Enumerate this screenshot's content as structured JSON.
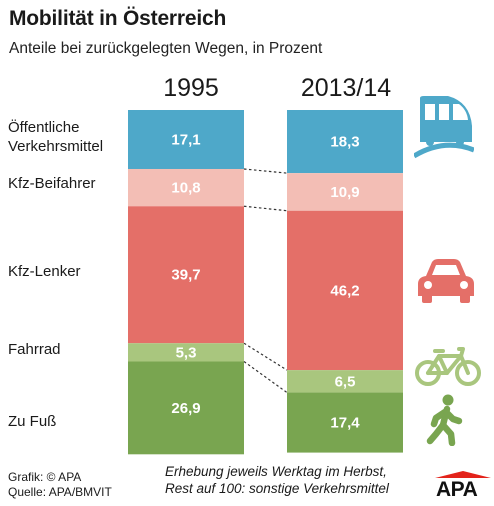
{
  "header": {
    "title": "Mobilität in Österreich",
    "subtitle": "Anteile bei zurückgelegten Wegen, in Prozent"
  },
  "rows": [
    {
      "label": "Öffentliche\nVerkehrsmittel",
      "color": "#4ea8c9",
      "icon": "train-icon"
    },
    {
      "label": "Kfz-Beifahrer",
      "color": "#f3beb5",
      "icon": ""
    },
    {
      "label": "Kfz-Lenker",
      "color": "#e46f68",
      "icon": "car-icon"
    },
    {
      "label": "Fahrrad",
      "color": "#a9c67e",
      "icon": "bicycle-icon"
    },
    {
      "label": "Zu Fuß",
      "color": "#79a550",
      "icon": "pedestrian-icon"
    }
  ],
  "chart_data": {
    "type": "bar",
    "stacked": true,
    "categories": [
      "1995",
      "2013/14"
    ],
    "series": [
      {
        "name": "Öffentliche Verkehrsmittel",
        "values": [
          17.1,
          18.3
        ],
        "labels": [
          "17,1",
          "18,3"
        ]
      },
      {
        "name": "Kfz-Beifahrer",
        "values": [
          10.8,
          10.9
        ],
        "labels": [
          "10,8",
          "10,9"
        ]
      },
      {
        "name": "Kfz-Lenker",
        "values": [
          39.7,
          46.2
        ],
        "labels": [
          "39,7",
          "46,2"
        ]
      },
      {
        "name": "Fahrrad",
        "values": [
          5.3,
          6.5
        ],
        "labels": [
          "5,3",
          "6,5"
        ]
      },
      {
        "name": "Zu Fuß",
        "values": [
          26.9,
          17.4
        ],
        "labels": [
          "26,9",
          "17,4"
        ]
      }
    ],
    "ylim": [
      0,
      100
    ]
  },
  "footer": {
    "credit_line1": "Grafik: © APA",
    "credit_line2": "Quelle: APA/BMVIT",
    "note_line1": "Erhebung jeweils Werktag im Herbst,",
    "note_line2": "Rest auf 100: sonstige Verkehrsmittel",
    "logo": "APA"
  },
  "colors": {
    "connector": "#333333",
    "value_text": "#ffffff",
    "icon_blue": "#4ea8c9",
    "icon_red": "#e46f68",
    "icon_green": "#a9c67e",
    "icon_darkgreen": "#79a550",
    "logo_red": "#e3231b"
  }
}
